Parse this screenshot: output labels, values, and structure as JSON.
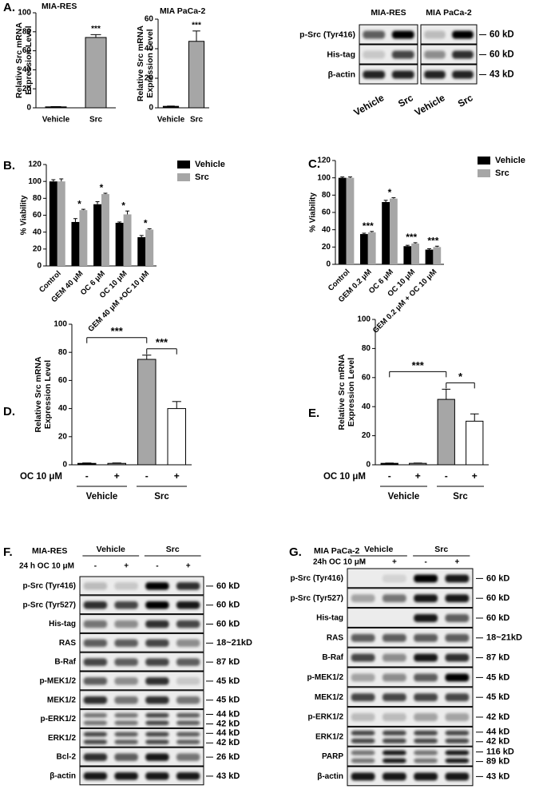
{
  "chart_data": [
    {
      "type": "bar",
      "panel": "A.",
      "title": "MIA-RES",
      "ylabel": [
        "Relative Src mRNA",
        "Expression Level"
      ],
      "categories": [
        "Vehicle",
        "Src"
      ],
      "values": [
        1,
        74
      ],
      "errors": [
        0.3,
        3
      ],
      "colors": [
        "#000000",
        "#a6a6a6"
      ],
      "annotations": [
        null,
        "***"
      ],
      "ylim": [
        0,
        100
      ],
      "yticks": [
        0,
        20,
        40,
        60,
        80,
        100
      ]
    },
    {
      "type": "bar",
      "title": "MIA PaCa-2",
      "ylabel": [
        "Relative Src mRNA",
        "Expression Level"
      ],
      "categories": [
        "Vehicle",
        "Src"
      ],
      "values": [
        1,
        45
      ],
      "errors": [
        0.2,
        7
      ],
      "colors": [
        "#000000",
        "#a6a6a6"
      ],
      "annotations": [
        null,
        "***"
      ],
      "ylim": [
        0,
        60
      ],
      "yticks": [
        0,
        20,
        40,
        60
      ]
    },
    {
      "type": "grouped_bar",
      "panel": "B.",
      "ylabel": [
        "% Viability"
      ],
      "categories": [
        "Control",
        "GEM 40 μM",
        "OC 6 μM",
        "OC 10 μM",
        "GEM 40 μM +OC 10 μM"
      ],
      "series": [
        {
          "name": "Vehicle",
          "color": "#000000",
          "values": [
            100,
            52,
            73,
            51,
            34
          ],
          "errors": [
            2,
            4,
            3,
            1,
            2
          ]
        },
        {
          "name": "Src",
          "color": "#a6a6a6",
          "values": [
            100,
            66,
            85,
            61,
            43
          ],
          "errors": [
            3,
            1,
            1,
            4,
            1
          ]
        }
      ],
      "annotations": [
        null,
        "*",
        "*",
        "*",
        "*"
      ],
      "ylim": [
        0,
        120
      ],
      "yticks": [
        0,
        20,
        40,
        60,
        80,
        100,
        120
      ]
    },
    {
      "type": "grouped_bar",
      "panel": "C.",
      "ylabel": [
        "% Viability"
      ],
      "categories": [
        "Control",
        "GEM 0.2 μM",
        "OC 6 μM",
        "OC 10 μM",
        "GEM 0.2 μM + OC 10 μM"
      ],
      "series": [
        {
          "name": "Vehicle",
          "color": "#000000",
          "values": [
            100,
            35,
            72,
            21,
            17
          ],
          "errors": [
            1,
            1,
            2,
            1,
            1
          ]
        },
        {
          "name": "Src",
          "color": "#a6a6a6",
          "values": [
            100,
            37,
            76,
            24,
            20
          ],
          "errors": [
            1,
            1,
            1,
            1,
            1
          ]
        }
      ],
      "annotations": [
        null,
        "***",
        "*",
        "***",
        "***"
      ],
      "ylim": [
        0,
        120
      ],
      "yticks": [
        0,
        20,
        40,
        60,
        80,
        100,
        120
      ]
    },
    {
      "type": "bar",
      "panel": "D.",
      "ylabel": [
        "Relative Src mRNA",
        "Expression Level"
      ],
      "categories": [
        "-",
        "+",
        "-",
        "+"
      ],
      "values": [
        1,
        1,
        75,
        40
      ],
      "errors": [
        0.3,
        0.3,
        3,
        5
      ],
      "colors": [
        "#000000",
        "#a6a6a6",
        "#a6a6a6",
        "#ffffff"
      ],
      "row_label": "OC 10 μM",
      "groups": [
        "Vehicle",
        "Src"
      ],
      "brackets": [
        {
          "from": 0,
          "to": 2,
          "label": "***"
        },
        {
          "from": 2,
          "to": 3,
          "label": "***"
        }
      ],
      "ylim": [
        0,
        100
      ],
      "yticks": [
        0,
        20,
        40,
        60,
        80,
        100
      ]
    },
    {
      "type": "bar",
      "panel": "E.",
      "ylabel": [
        "Relative Src mRNA",
        "Expression Level"
      ],
      "categories": [
        "-",
        "+",
        "-",
        "+"
      ],
      "values": [
        1,
        1,
        45,
        30
      ],
      "errors": [
        0.2,
        0.2,
        7,
        5
      ],
      "colors": [
        "#000000",
        "#a6a6a6",
        "#a6a6a6",
        "#ffffff"
      ],
      "row_label": "OC 10 μM",
      "groups": [
        "Vehicle",
        "Src"
      ],
      "brackets": [
        {
          "from": 0,
          "to": 2,
          "label": "***"
        },
        {
          "from": 2,
          "to": 3,
          "label": "*"
        }
      ],
      "ylim": [
        0,
        100
      ],
      "yticks": [
        0,
        20,
        40,
        60,
        80,
        100
      ]
    }
  ],
  "blots": [
    {
      "columns": [
        "MIA-RES",
        "MIA PaCa-2"
      ],
      "lanes": [
        "Vehicle",
        "Src",
        "Vehicle",
        "Src"
      ],
      "rows": [
        {
          "label": "p-Src (Tyr416)",
          "kd": [
            "60 kD"
          ]
        },
        {
          "label": "His-tag",
          "kd": [
            "60 kD"
          ]
        },
        {
          "label": "β-actin",
          "kd": [
            "43 kD"
          ]
        }
      ]
    },
    {
      "panel": "F.",
      "cell_line": "MIA-RES",
      "groups": [
        "Vehicle",
        "Src"
      ],
      "treatment": "24 h OC 10 μM",
      "lanes": [
        "-",
        "+",
        "-",
        "+"
      ],
      "rows": [
        {
          "label": "p-Src (Tyr416)",
          "kd": [
            "60 kD"
          ]
        },
        {
          "label": "p-Src (Tyr527)",
          "kd": [
            "60 kD"
          ]
        },
        {
          "label": "His-tag",
          "kd": [
            "60 kD"
          ]
        },
        {
          "label": "RAS",
          "kd": [
            "18~21kD"
          ]
        },
        {
          "label": "B-Raf",
          "kd": [
            "87 kD"
          ]
        },
        {
          "label": "p-MEK1/2",
          "kd": [
            "45 kD"
          ]
        },
        {
          "label": "MEK1/2",
          "kd": [
            "45 kD"
          ]
        },
        {
          "label": "p-ERK1/2",
          "kd": [
            "44 kD",
            "42 kD"
          ]
        },
        {
          "label": "ERK1/2",
          "kd": [
            "44 kD",
            "42 kD"
          ]
        },
        {
          "label": "Bcl-2",
          "kd": [
            "26 kD"
          ]
        },
        {
          "label": "β-actin",
          "kd": [
            "43 kD"
          ]
        }
      ]
    },
    {
      "panel": "G.",
      "cell_line": "MIA PaCa-2",
      "groups": [
        "Vehicle",
        "Src"
      ],
      "treatment": "24h OC 10 μM",
      "lanes": [
        "-",
        "+",
        "-",
        "+"
      ],
      "rows": [
        {
          "label": "p-Src (Tyr416)",
          "kd": [
            "60 kD"
          ]
        },
        {
          "label": "p-Src (Tyr527)",
          "kd": [
            "60 kD"
          ]
        },
        {
          "label": "His-tag",
          "kd": [
            "60 kD"
          ]
        },
        {
          "label": "RAS",
          "kd": [
            "18~21kD"
          ]
        },
        {
          "label": "B-Raf",
          "kd": [
            "87 kD"
          ]
        },
        {
          "label": "p-MEK1/2",
          "kd": [
            "45 kD"
          ]
        },
        {
          "label": "MEK1/2",
          "kd": [
            "45 kD"
          ]
        },
        {
          "label": "p-ERK1/2",
          "kd": [
            "42 kD"
          ]
        },
        {
          "label": "ERK1/2",
          "kd": [
            "44 kD",
            "42 kD"
          ]
        },
        {
          "label": "PARP",
          "kd": [
            "116 kD",
            "89 kD"
          ]
        },
        {
          "label": "β-actin",
          "kd": [
            "43 kD"
          ]
        }
      ]
    }
  ]
}
